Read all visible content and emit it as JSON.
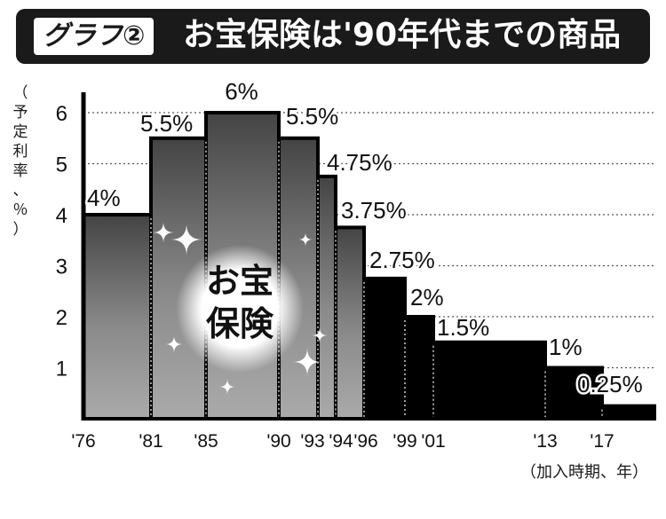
{
  "header": {
    "badge": "グラフ②",
    "title": "お宝保険は'90年代までの商品"
  },
  "overlay": {
    "line1": "お宝",
    "line2": "保険"
  },
  "colors": {
    "highlight_fill_dark": "#3a3a3a",
    "highlight_fill_light": "#9a9a9a",
    "normal_fill": "#000000",
    "title_bg": "#1a1a1a"
  },
  "chart_data": {
    "type": "bar",
    "style": "step",
    "ylabel": "（予定利率、％）",
    "xlabel": "（加入時期、年）",
    "ylim": [
      0,
      6.5
    ],
    "y_ticks": [
      "1",
      "2",
      "3",
      "4",
      "5",
      "6"
    ],
    "x_ticks": [
      "'76",
      "'81",
      "'85",
      "'90",
      "'93",
      "'94",
      "'96",
      "'99",
      "'01",
      "'13",
      "'17"
    ],
    "x_end": 2020,
    "periods": [
      {
        "start": 1976,
        "end": 1981,
        "value": 4,
        "label": "4%",
        "highlight": true
      },
      {
        "start": 1981,
        "end": 1985,
        "value": 5.5,
        "label": "5.5%",
        "highlight": true
      },
      {
        "start": 1985,
        "end": 1990,
        "value": 6,
        "label": "6%",
        "highlight": true
      },
      {
        "start": 1990,
        "end": 1993,
        "value": 5.5,
        "label": "5.5%",
        "highlight": true
      },
      {
        "start": 1993,
        "end": 1994,
        "value": 4.75,
        "label": "4.75%",
        "highlight": true
      },
      {
        "start": 1994,
        "end": 1996,
        "value": 3.75,
        "label": "3.75%",
        "highlight": true
      },
      {
        "start": 1996,
        "end": 1999,
        "value": 2.75,
        "label": "2.75%",
        "highlight": false
      },
      {
        "start": 1999,
        "end": 2001,
        "value": 2,
        "label": "2%",
        "highlight": false
      },
      {
        "start": 2001,
        "end": 2013,
        "value": 1.5,
        "label": "1.5%",
        "highlight": false
      },
      {
        "start": 2013,
        "end": 2017,
        "value": 1,
        "label": "1%",
        "highlight": false
      },
      {
        "start": 2017,
        "end": 2020,
        "value": 0.25,
        "label": "0.25%",
        "highlight": false
      }
    ]
  }
}
